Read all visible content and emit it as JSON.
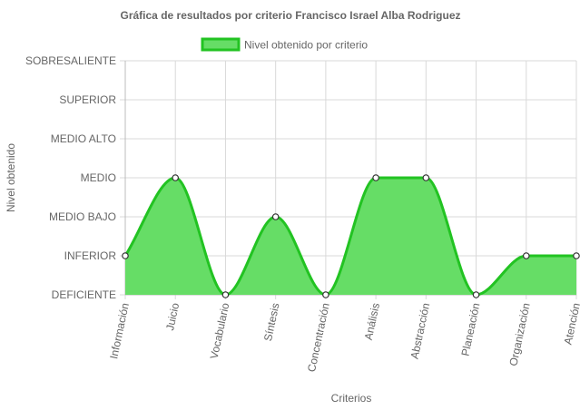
{
  "chart_data": {
    "type": "area",
    "title": "Gráfica de resultados por criterio Francisco Israel Alba Rodriguez",
    "xlabel": "Criterios",
    "ylabel": "Nivel obtenido",
    "categories": [
      "Información",
      "Juicio",
      "Vocabulario",
      "Síntesis",
      "Concentración",
      "Análisis",
      "Abstracción",
      "Planeación",
      "Organización",
      "Atención"
    ],
    "y_levels": [
      "DEFICIENTE",
      "INFERIOR",
      "MEDIO BAJO",
      "MEDIO",
      "MEDIO ALTO",
      "SUPERIOR",
      "SOBRESALIENTE"
    ],
    "ylim": [
      0,
      6
    ],
    "series": [
      {
        "name": "Nivel obtenido por criterio",
        "values": [
          1,
          3,
          0,
          2,
          0,
          3,
          3,
          0,
          1,
          1
        ],
        "color": "#22c322",
        "fill": "#66dd66"
      }
    ],
    "legend": {
      "position": "top"
    },
    "grid": true
  }
}
